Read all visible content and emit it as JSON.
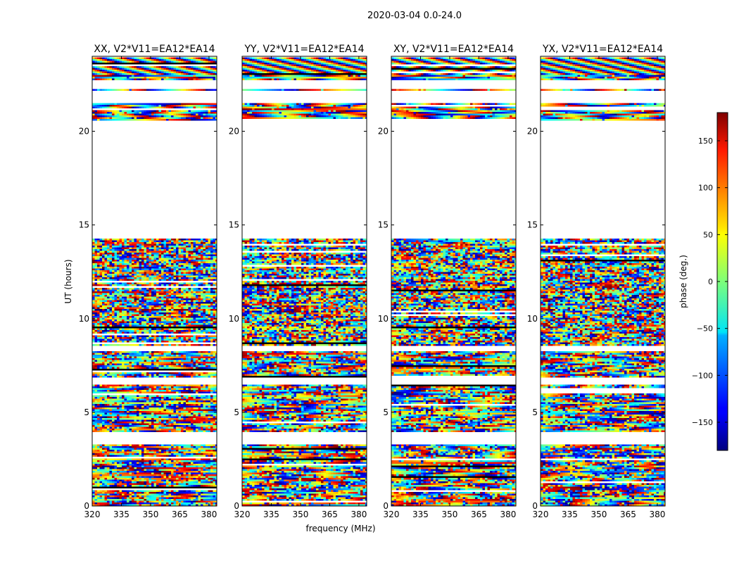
{
  "figure_title": "2020-03-04 0.0-24.0",
  "chart_data": {
    "type": "heatmap",
    "title": "2020-03-04 0.0-24.0",
    "xlabel": "frequency (MHz)",
    "ylabel": "UT (hours)",
    "xlim": [
      320,
      384
    ],
    "ylim": [
      0,
      24
    ],
    "xticks": [
      320,
      335,
      350,
      365,
      380
    ],
    "yticks": [
      0,
      5,
      10,
      15,
      20
    ],
    "colorbar": {
      "label": "phase (deg.)",
      "range": [
        -180,
        180
      ],
      "ticks": [
        -150,
        -100,
        -50,
        0,
        50,
        100,
        150
      ],
      "colormap": "jet"
    },
    "panels": [
      {
        "title": "XX, V2*V11=EA12*EA14",
        "data_x": [
          320,
          384
        ],
        "data_y": [
          0,
          24
        ]
      },
      {
        "title": "YY, V2*V11=EA12*EA14",
        "data_x": [
          320,
          384
        ],
        "data_y": [
          0,
          24
        ]
      },
      {
        "title": "XY, V2*V11=EA12*EA14",
        "data_x": [
          320,
          384
        ],
        "data_y": [
          0,
          24
        ]
      },
      {
        "title": "YX, V2*V11=EA12*EA14",
        "data_x": [
          320,
          384
        ],
        "data_y": [
          0,
          24
        ]
      }
    ],
    "flagged_ut_ranges": [
      [
        3.3,
        3.9
      ],
      [
        6.5,
        6.85
      ],
      [
        8.3,
        8.5
      ],
      [
        14.3,
        20.6
      ],
      [
        21.5,
        22.2
      ],
      [
        22.3,
        22.7
      ]
    ]
  }
}
